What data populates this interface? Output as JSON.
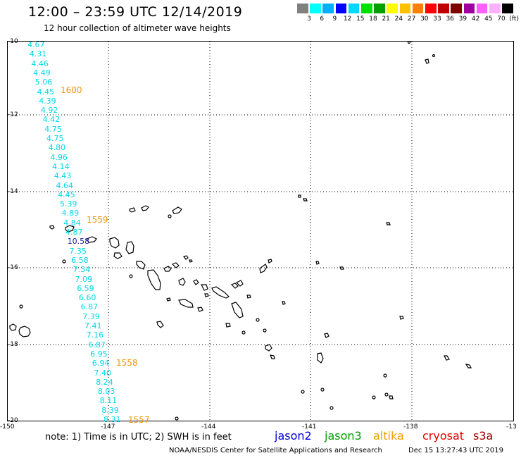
{
  "header": {
    "title": "12:00 – 23:59 UTC 12/14/2019",
    "subtitle": "12 hour collection of altimeter wave heights"
  },
  "color_scale": {
    "labels": [
      "3",
      "6",
      "9",
      "12",
      "15",
      "18",
      "21",
      "24",
      "27",
      "30",
      "33",
      "36",
      "39",
      "42",
      "45",
      "70",
      "(ft)"
    ],
    "colors": [
      "#808080",
      "#00ffff",
      "#00b0ff",
      "#0000ff",
      "#00d8ff",
      "#00e000",
      "#00a000",
      "#ffff00",
      "#ffc000",
      "#ff8000",
      "#ff0000",
      "#c00000",
      "#800000",
      "#a000a0",
      "#ff60ff",
      "#ffb0ff",
      "#000000"
    ]
  },
  "axes": {
    "lat_labels": [
      "-10",
      "-12",
      "-14",
      "-16",
      "-18",
      "-20"
    ],
    "lon_labels": [
      "-150",
      "-147",
      "-144",
      "-141",
      "-138",
      "-13"
    ],
    "lat_range": [
      -20,
      -10
    ],
    "lon_range": [
      -150,
      -135
    ]
  },
  "track": {
    "wave_heights": [
      "4.67",
      "4.31",
      "4.46",
      "4.49",
      "5.06",
      "4.45",
      "4.39",
      "4.92",
      "4.42",
      "4.75",
      "4.75",
      "4.80",
      "4.96",
      "4.14",
      "4.43",
      "4.64",
      "4.45",
      "5.39",
      "4.89",
      "4.84",
      "4.87",
      "10.58",
      "7.35",
      "6.58",
      "7.34",
      "7.09",
      "6.59",
      "6.60",
      "6.87",
      "7.39",
      "7.41",
      "7.16",
      "6.87",
      "6.95",
      "6.94",
      "7.40",
      "8.24",
      "8.03",
      "8.11",
      "8.39",
      "8.31"
    ],
    "time_labels": [
      "1600",
      "1559",
      "1558",
      "1557"
    ]
  },
  "note": "note:  1) Time is in UTC;  2) SWH is in feet",
  "satellites": [
    {
      "name": "jason2",
      "color": "#0000dd"
    },
    {
      "name": "jason3",
      "color": "#00a000"
    },
    {
      "name": "altika",
      "color": "#f0a000"
    },
    {
      "name": "cryosat",
      "color": "#e00000"
    },
    {
      "name": "s3a",
      "color": "#a00000"
    }
  ],
  "footer": "NOAA/NESDIS Center for Satellite Applications and Research",
  "timestamp": "Dec 15 13:27:43 UTC 2019"
}
